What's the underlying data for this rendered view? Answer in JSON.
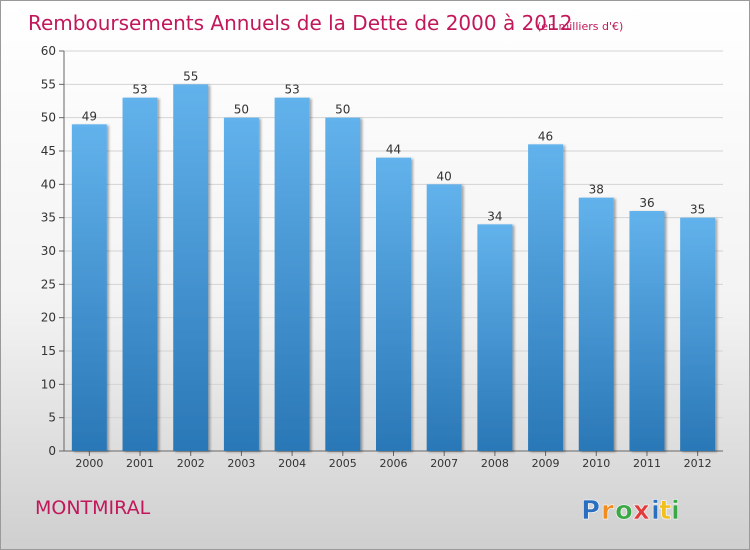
{
  "chart_data": {
    "type": "bar",
    "title": "Remboursements Annuels de la Dette de 2000 à 2012",
    "unit": "(en milliers d'€)",
    "categories": [
      "2000",
      "2001",
      "2002",
      "2003",
      "2004",
      "2005",
      "2006",
      "2007",
      "2008",
      "2009",
      "2010",
      "2011",
      "2012"
    ],
    "values": [
      49,
      53,
      55,
      50,
      53,
      50,
      44,
      40,
      34,
      46,
      38,
      36,
      35
    ],
    "ylim": [
      0,
      60
    ],
    "yticks": [
      0,
      5,
      10,
      15,
      20,
      25,
      30,
      35,
      40,
      45,
      50,
      55,
      60
    ],
    "xlabel": "",
    "ylabel": "",
    "grid": true,
    "bar_color_top": "#62b2ec",
    "bar_color_bottom": "#2a77b6"
  },
  "footer": {
    "place": "MONTMIRAL",
    "brand_letters": [
      "P",
      "r",
      "o",
      "x",
      "i",
      "t",
      "i"
    ],
    "brand_colors": [
      "#2a6fbf",
      "#f28c1e",
      "#3aa845",
      "#e23b3b",
      "#2a6fbf",
      "#f2c01e",
      "#3aa845"
    ]
  }
}
